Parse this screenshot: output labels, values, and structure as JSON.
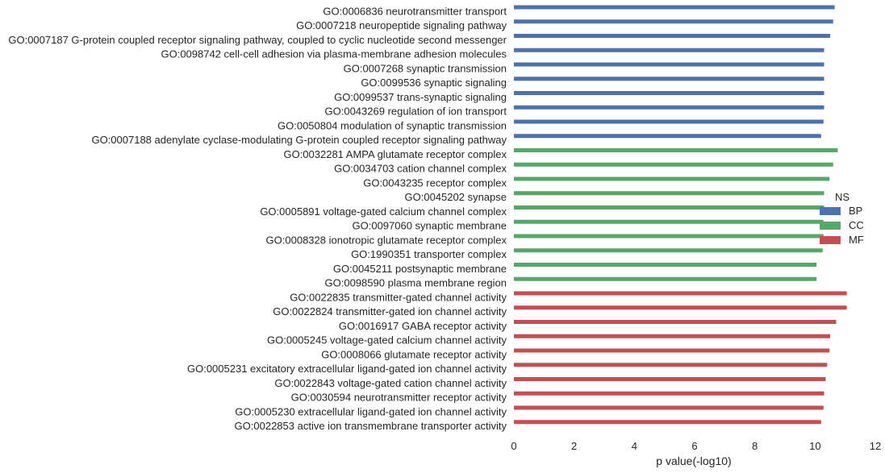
{
  "chart_data": {
    "type": "bar",
    "orientation": "horizontal",
    "xlabel": "p value(-log10)",
    "ylabel": "",
    "xlim": [
      0,
      12
    ],
    "xticks": [
      0,
      2,
      4,
      6,
      8,
      10,
      12
    ],
    "grid": false,
    "legend": {
      "title": "NS",
      "placement": "right",
      "entries": [
        {
          "name": "BP",
          "color": "#4c72b0"
        },
        {
          "name": "CC",
          "color": "#55a868"
        },
        {
          "name": "MF",
          "color": "#c44e52"
        }
      ]
    },
    "bars": [
      {
        "label": "GO:0006836 neurotransmitter transport",
        "group": "BP",
        "value": 10.65
      },
      {
        "label": "GO:0007218 neuropeptide signaling pathway",
        "group": "BP",
        "value": 10.6
      },
      {
        "label": "GO:0007187 G-protein coupled receptor signaling pathway, coupled to cyclic nucleotide second messenger",
        "group": "BP",
        "value": 10.5
      },
      {
        "label": "GO:0098742 cell-cell adhesion via plasma-membrane adhesion molecules",
        "group": "BP",
        "value": 10.3
      },
      {
        "label": "GO:0007268 synaptic transmission",
        "group": "BP",
        "value": 10.3
      },
      {
        "label": "GO:0099536 synaptic signaling",
        "group": "BP",
        "value": 10.3
      },
      {
        "label": "GO:0099537 trans-synaptic signaling",
        "group": "BP",
        "value": 10.3
      },
      {
        "label": "GO:0043269 regulation of ion transport",
        "group": "BP",
        "value": 10.3
      },
      {
        "label": "GO:0050804 modulation of synaptic transmission",
        "group": "BP",
        "value": 10.28
      },
      {
        "label": "GO:0007188 adenylate cyclase-modulating G-protein coupled receptor signaling pathway",
        "group": "BP",
        "value": 10.2
      },
      {
        "label": "GO:0032281 AMPA glutamate receptor complex",
        "group": "CC",
        "value": 10.75
      },
      {
        "label": "GO:0034703 cation channel complex",
        "group": "CC",
        "value": 10.6
      },
      {
        "label": "GO:0043235 receptor complex",
        "group": "CC",
        "value": 10.48
      },
      {
        "label": "GO:0045202 synapse",
        "group": "CC",
        "value": 10.3
      },
      {
        "label": "GO:0005891 voltage-gated calcium channel complex",
        "group": "CC",
        "value": 10.3
      },
      {
        "label": "GO:0097060 synaptic membrane",
        "group": "CC",
        "value": 10.28
      },
      {
        "label": "GO:0008328 ionotropic glutamate receptor complex",
        "group": "CC",
        "value": 10.28
      },
      {
        "label": "GO:1990351 transporter complex",
        "group": "CC",
        "value": 10.25
      },
      {
        "label": "GO:0045211 postsynaptic membrane",
        "group": "CC",
        "value": 10.05
      },
      {
        "label": "GO:0098590 plasma membrane region",
        "group": "CC",
        "value": 10.05
      },
      {
        "label": "GO:0022835 transmitter-gated channel activity",
        "group": "MF",
        "value": 11.05
      },
      {
        "label": "GO:0022824 transmitter-gated ion channel activity",
        "group": "MF",
        "value": 11.05
      },
      {
        "label": "GO:0016917 GABA receptor activity",
        "group": "MF",
        "value": 10.7
      },
      {
        "label": "GO:0005245 voltage-gated calcium channel activity",
        "group": "MF",
        "value": 10.5
      },
      {
        "label": "GO:0008066 glutamate receptor activity",
        "group": "MF",
        "value": 10.48
      },
      {
        "label": "GO:0005231 excitatory extracellular ligand-gated ion channel activity",
        "group": "MF",
        "value": 10.4
      },
      {
        "label": "GO:0022843 voltage-gated cation channel activity",
        "group": "MF",
        "value": 10.35
      },
      {
        "label": "GO:0030594 neurotransmitter receptor activity",
        "group": "MF",
        "value": 10.3
      },
      {
        "label": "GO:0005230 extracellular ligand-gated ion channel activity",
        "group": "MF",
        "value": 10.28
      },
      {
        "label": "GO:0022853 active ion transmembrane transporter activity",
        "group": "MF",
        "value": 10.2
      }
    ]
  }
}
